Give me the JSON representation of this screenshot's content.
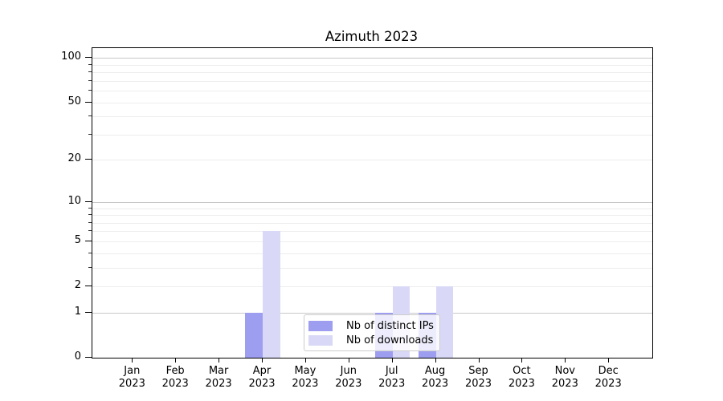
{
  "title": "Azimuth 2023",
  "chart_data": {
    "type": "bar",
    "title": "Azimuth 2023",
    "x": {
      "categories": [
        "Jan",
        "Feb",
        "Mar",
        "Apr",
        "May",
        "Jun",
        "Jul",
        "Aug",
        "Sep",
        "Oct",
        "Nov",
        "Dec"
      ],
      "year_sublabel": "2023"
    },
    "y": {
      "scale": "log1p",
      "tick_labels": [
        0,
        1,
        2,
        5,
        10,
        20,
        50,
        100
      ],
      "major_grid_values": [
        1,
        10,
        100
      ],
      "minor_grid_values": [
        2,
        3,
        4,
        5,
        6,
        7,
        8,
        9,
        20,
        30,
        40,
        50,
        60,
        70,
        80,
        90
      ],
      "minor_tick_values": [
        3,
        4,
        6,
        7,
        8,
        9,
        30,
        40,
        60,
        70,
        80,
        90
      ],
      "range": [
        0,
        115
      ]
    },
    "series": [
      {
        "name": "Nb of distinct IPs",
        "color": "#9e9ef0",
        "values": [
          0,
          0,
          0,
          1,
          0,
          0,
          1,
          1,
          0,
          0,
          0,
          0
        ]
      },
      {
        "name": "Nb of downloads",
        "color": "#d9d9f7",
        "values": [
          0,
          0,
          0,
          6,
          0,
          0,
          2,
          2,
          0,
          0,
          0,
          0
        ]
      }
    ],
    "legend": {
      "entries": [
        "Nb of distinct IPs",
        "Nb of downloads"
      ],
      "position": "lower center"
    },
    "grid": "on",
    "colors": {
      "grid_major": "#c9c9c9",
      "grid_minor": "#ededed",
      "axis": "#000000",
      "legend_border": "#cccccc",
      "background": "#ffffff"
    }
  }
}
